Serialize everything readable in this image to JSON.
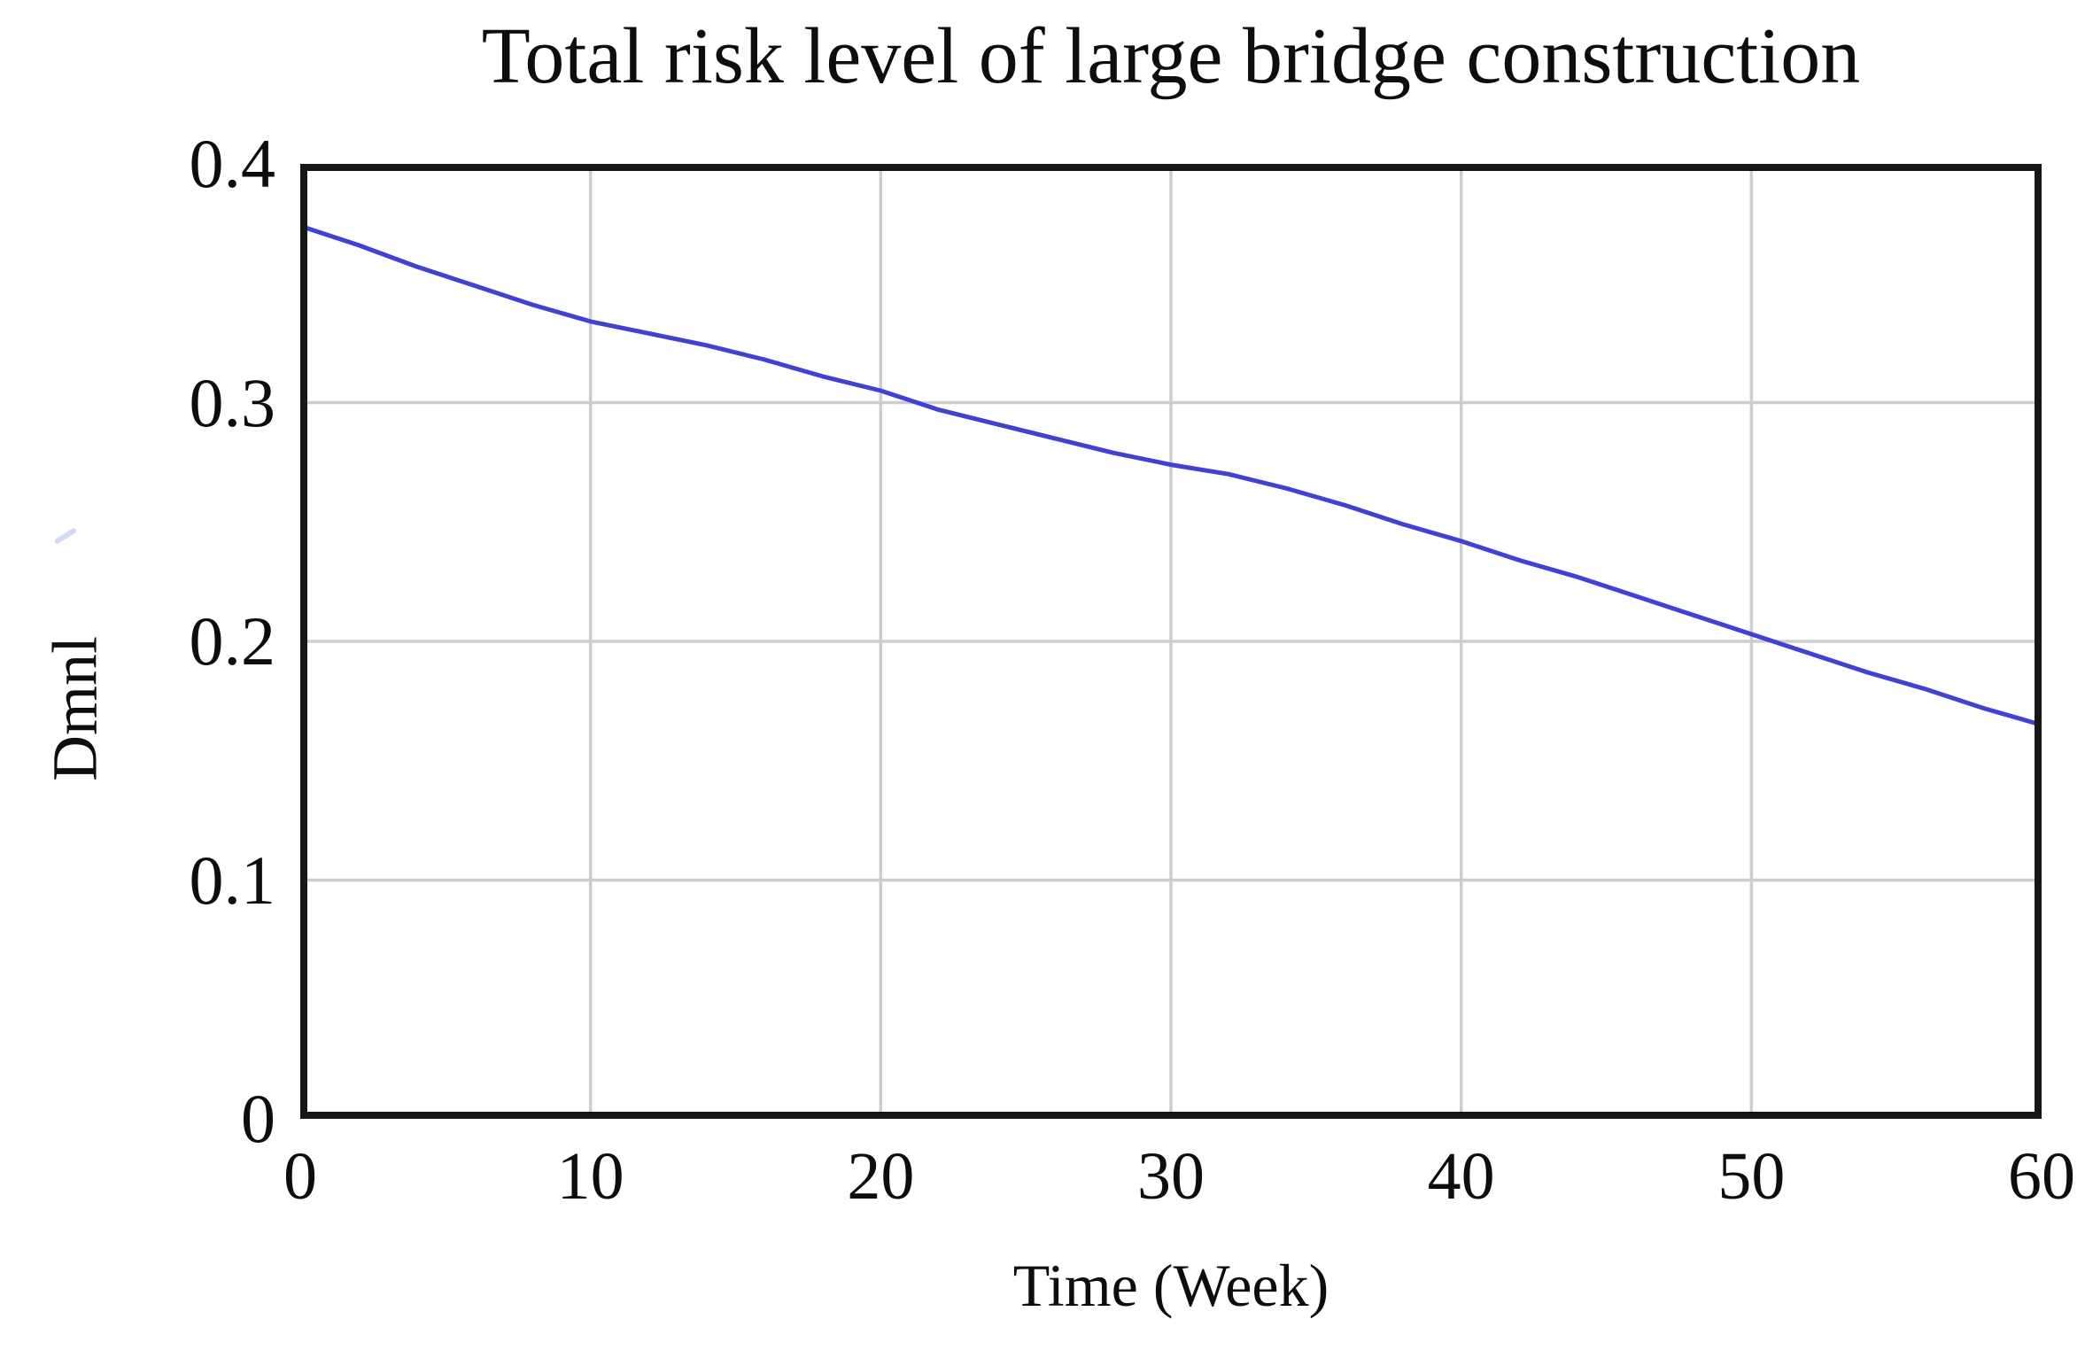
{
  "chart_data": {
    "type": "line",
    "title": "Total risk level of large bridge construction",
    "xlabel": "Time (Week)",
    "ylabel": "Dmnl",
    "xlim": [
      0,
      60
    ],
    "ylim": [
      0,
      0.4
    ],
    "xticks": [
      0,
      10,
      20,
      30,
      40,
      50,
      60
    ],
    "xtick_labels": [
      "0",
      "10",
      "20",
      "30",
      "40",
      "50",
      "60"
    ],
    "yticks": [
      0,
      0.1,
      0.2,
      0.3,
      0.4
    ],
    "ytick_labels": [
      "0",
      "0.1",
      "0.2",
      "0.3",
      "0.4"
    ],
    "grid": true,
    "legend_position": "none",
    "series": [
      {
        "name": "Total risk level of large bridge construction",
        "x": [
          0,
          2,
          4,
          6,
          8,
          10,
          12,
          14,
          16,
          18,
          20,
          22,
          24,
          26,
          28,
          30,
          32,
          34,
          36,
          38,
          40,
          42,
          44,
          46,
          48,
          50,
          52,
          54,
          56,
          58,
          60
        ],
        "values": [
          0.374,
          0.366,
          0.357,
          0.349,
          0.341,
          0.334,
          0.329,
          0.324,
          0.318,
          0.311,
          0.305,
          0.297,
          0.291,
          0.285,
          0.279,
          0.274,
          0.27,
          0.264,
          0.257,
          0.249,
          0.242,
          0.234,
          0.227,
          0.219,
          0.211,
          0.203,
          0.195,
          0.187,
          0.18,
          0.172,
          0.165
        ]
      }
    ],
    "colors": {
      "line": "#4141d6",
      "grid": "#cdcdcd",
      "frame": "#161616",
      "text": "#0d0d0d",
      "background": "#ffffff"
    }
  }
}
